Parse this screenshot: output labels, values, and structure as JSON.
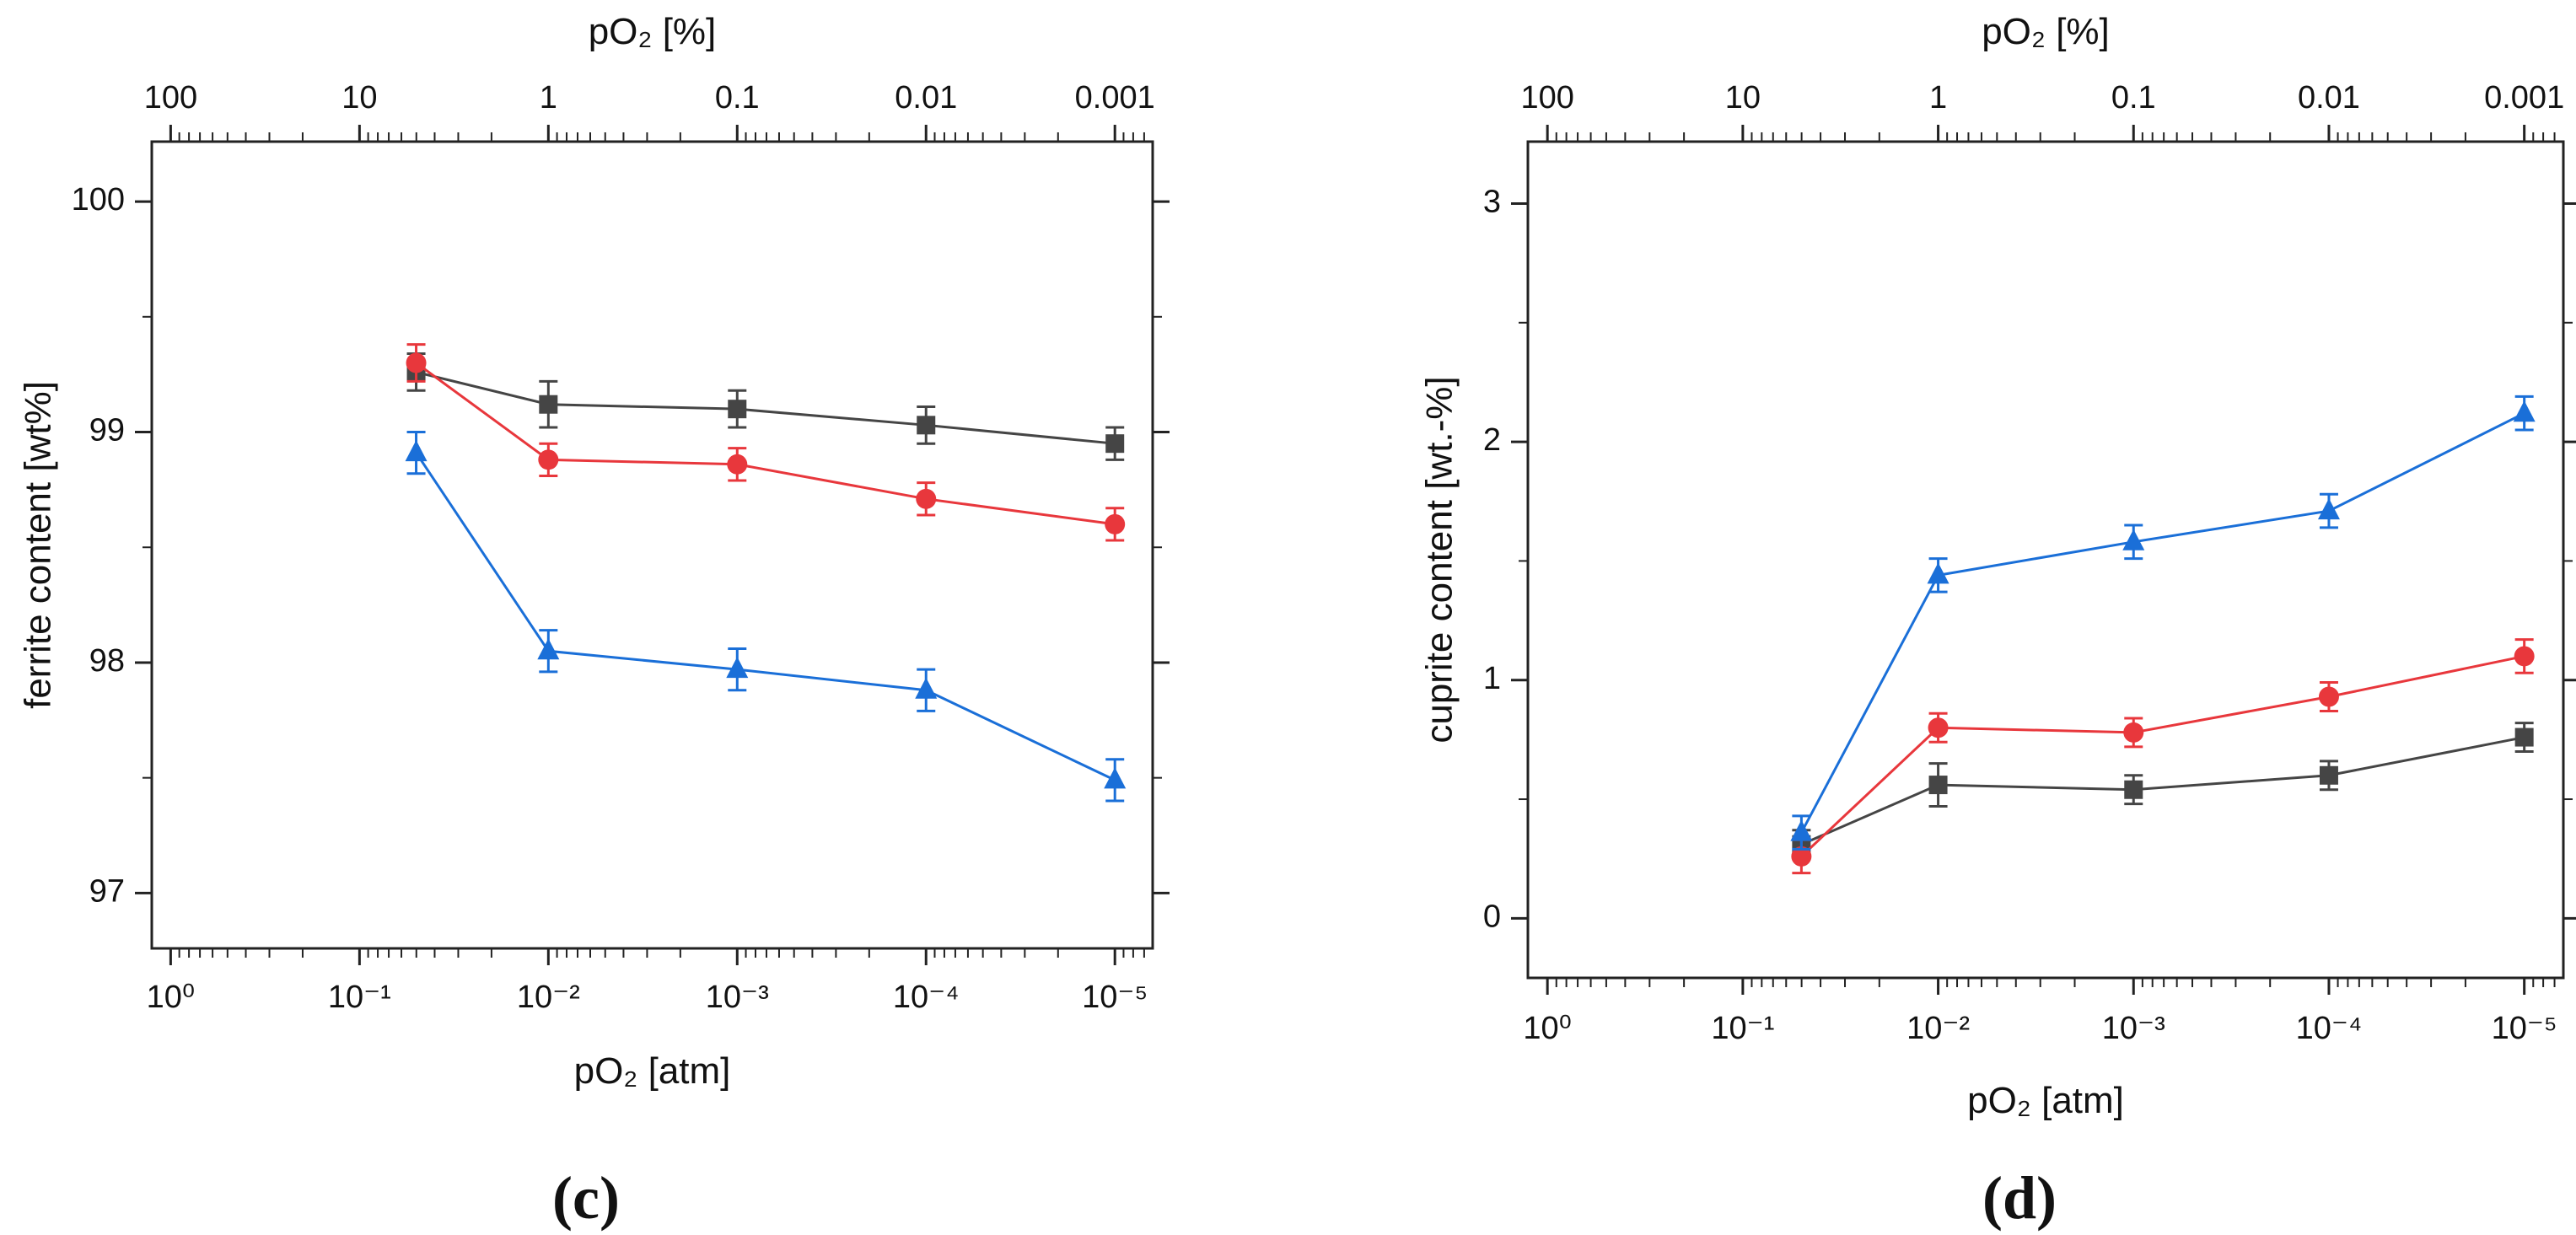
{
  "chart_data": [
    {
      "type": "line",
      "panel_label": "(c)",
      "top_title": "pO₂ [%]",
      "top_ticks": [
        "100",
        "10",
        "1",
        "0.1",
        "0.01",
        "0.001"
      ],
      "xlabel": "pO₂ [atm]",
      "x_ticks": [
        "10⁰",
        "10⁻¹",
        "10⁻²",
        "10⁻³",
        "10⁻⁴",
        "10⁻⁵"
      ],
      "ylabel": "ferrite content [wt%]",
      "y_ticks": [
        97,
        98,
        99,
        100
      ],
      "xlim_log10": [
        0.1,
        -5.2
      ],
      "ylim": [
        96.76,
        100.26
      ],
      "x_log10": [
        -1.3,
        -2,
        -3,
        -4,
        -5
      ],
      "series": [
        {
          "name": "black-square",
          "color": "#454545",
          "marker": "square",
          "values": [
            99.26,
            99.12,
            99.1,
            99.03,
            98.95
          ],
          "errors": [
            0.08,
            0.1,
            0.08,
            0.08,
            0.07
          ]
        },
        {
          "name": "red-circle",
          "color": "#e8373c",
          "marker": "circle",
          "values": [
            99.3,
            98.88,
            98.86,
            98.71,
            98.6
          ],
          "errors": [
            0.08,
            0.07,
            0.07,
            0.07,
            0.07
          ]
        },
        {
          "name": "blue-triangle",
          "color": "#1a6fd8",
          "marker": "triangle",
          "values": [
            98.91,
            98.05,
            97.97,
            97.88,
            97.49
          ],
          "errors": [
            0.09,
            0.09,
            0.09,
            0.09,
            0.09
          ]
        }
      ]
    },
    {
      "type": "line",
      "panel_label": "(d)",
      "top_title": "pO₂ [%]",
      "top_ticks": [
        "100",
        "10",
        "1",
        "0.1",
        "0.01",
        "0.001"
      ],
      "xlabel": "pO₂ [atm]",
      "x_ticks": [
        "10⁰",
        "10⁻¹",
        "10⁻²",
        "10⁻³",
        "10⁻⁴",
        "10⁻⁵"
      ],
      "ylabel": "cuprite content [wt.-%]",
      "y_ticks": [
        0,
        1,
        2,
        3
      ],
      "xlim_log10": [
        0.1,
        -5.2
      ],
      "ylim": [
        -0.25,
        3.26
      ],
      "x_log10": [
        -1.3,
        -2,
        -3,
        -4,
        -5
      ],
      "series": [
        {
          "name": "black-square",
          "color": "#454545",
          "marker": "square",
          "values": [
            0.31,
            0.56,
            0.54,
            0.6,
            0.76
          ],
          "errors": [
            0.06,
            0.09,
            0.06,
            0.06,
            0.06
          ]
        },
        {
          "name": "red-circle",
          "color": "#e8373c",
          "marker": "circle",
          "values": [
            0.26,
            0.8,
            0.78,
            0.93,
            1.1
          ],
          "errors": [
            0.07,
            0.06,
            0.06,
            0.06,
            0.07
          ]
        },
        {
          "name": "blue-triangle",
          "color": "#1a6fd8",
          "marker": "triangle",
          "values": [
            0.36,
            1.44,
            1.58,
            1.71,
            2.12
          ],
          "errors": [
            0.07,
            0.07,
            0.07,
            0.07,
            0.07
          ]
        }
      ]
    }
  ]
}
